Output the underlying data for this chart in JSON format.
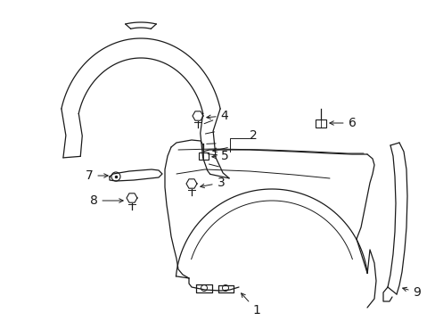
{
  "background_color": "#ffffff",
  "line_color": "#1a1a1a",
  "figsize": [
    4.89,
    3.6
  ],
  "dpi": 100,
  "lw": 0.9
}
